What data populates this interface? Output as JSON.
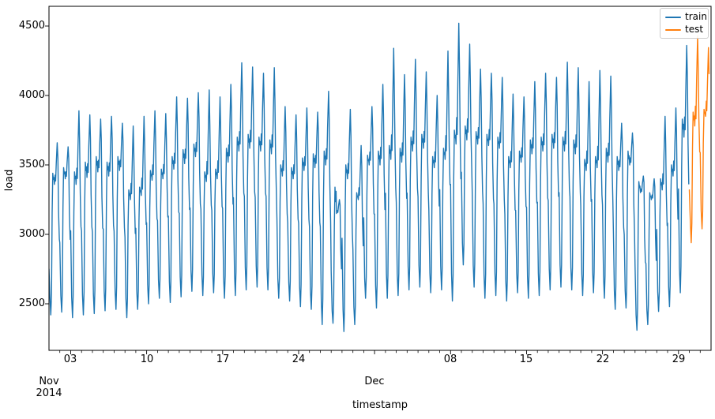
{
  "figure": {
    "background": "#ffffff",
    "description": "Line plot of hourly energy load, train and test split, Nov-Dec 2014"
  },
  "chart_data": {
    "type": "line",
    "title": "",
    "xlabel": "timestamp",
    "ylabel": "load",
    "ylim": [
      2165,
      4642
    ],
    "x_span_days": 61,
    "x_start_label": "Nov 01 2014",
    "grid": false,
    "background": "#ffffff",
    "axis_color": "#000000",
    "text_color": "#000000",
    "legend": {
      "position": "upper right"
    },
    "y_ticks": [
      {
        "value": 2500,
        "label": "2500"
      },
      {
        "value": 3000,
        "label": "3000"
      },
      {
        "value": 3500,
        "label": "3500"
      },
      {
        "value": 4000,
        "label": "4000"
      },
      {
        "value": 4500,
        "label": "4500"
      }
    ],
    "x_ticks": [
      {
        "day": 2,
        "label": "03"
      },
      {
        "day": 9,
        "label": "10"
      },
      {
        "day": 16,
        "label": "17"
      },
      {
        "day": 23,
        "label": "24"
      },
      {
        "day": 30,
        "label": ""
      },
      {
        "day": 37,
        "label": "08"
      },
      {
        "day": 44,
        "label": "15"
      },
      {
        "day": 51,
        "label": "22"
      },
      {
        "day": 58,
        "label": "29"
      }
    ],
    "x_minor_tick_interval_days": 1,
    "x_offset_labels": [
      {
        "line1": "Nov",
        "line2": "2014",
        "day": 0
      },
      {
        "line1": "Dec",
        "line2": "",
        "day": 30
      }
    ],
    "series": [
      {
        "name": "train",
        "color": "#1f77b4",
        "start_day": 0,
        "days": [
          {
            "d": "Nov 01",
            "open": 2750,
            "v": [
              2420,
              3440,
              3360,
              3660
            ]
          },
          {
            "d": "Nov 02",
            "v": [
              2440,
              3480,
              3400,
              3630
            ]
          },
          {
            "d": "Nov 03",
            "v": [
              2400,
              3450,
              3360,
              3890
            ]
          },
          {
            "d": "Nov 04",
            "v": [
              2420,
              3520,
              3410,
              3860
            ]
          },
          {
            "d": "Nov 05",
            "v": [
              2430,
              3560,
              3450,
              3830
            ]
          },
          {
            "d": "Nov 06",
            "v": [
              2450,
              3520,
              3420,
              3850
            ]
          },
          {
            "d": "Nov 07",
            "v": [
              2460,
              3560,
              3460,
              3800
            ]
          },
          {
            "d": "Nov 08",
            "v": [
              2400,
              3320,
              3250,
              3780
            ]
          },
          {
            "d": "Nov 09",
            "v": [
              2460,
              3340,
              3280,
              3850
            ]
          },
          {
            "d": "Nov 10",
            "v": [
              2500,
              3460,
              3390,
              3890
            ]
          },
          {
            "d": "Nov 11",
            "v": [
              2540,
              3470,
              3400,
              3870
            ]
          },
          {
            "d": "Nov 12",
            "v": [
              2510,
              3560,
              3470,
              3990
            ]
          },
          {
            "d": "Nov 13",
            "v": [
              2550,
              3610,
              3510,
              3980
            ]
          },
          {
            "d": "Nov 14",
            "v": [
              2590,
              3650,
              3560,
              4020
            ]
          },
          {
            "d": "Nov 15",
            "v": [
              2560,
              3450,
              3380,
              4040
            ]
          },
          {
            "d": "Nov 16",
            "v": [
              2580,
              3470,
              3400,
              3990
            ]
          },
          {
            "d": "Nov 17",
            "v": [
              2540,
              3620,
              3520,
              4080
            ]
          },
          {
            "d": "Nov 18",
            "v": [
              2560,
              3700,
              3600,
              4235
            ]
          },
          {
            "d": "Nov 19",
            "v": [
              2600,
              3720,
              3620,
              4205
            ]
          },
          {
            "d": "Nov 20",
            "v": [
              2620,
              3700,
              3600,
              4160
            ]
          },
          {
            "d": "Nov 21",
            "v": [
              2600,
              3680,
              3580,
              4200
            ]
          },
          {
            "d": "Nov 22",
            "v": [
              2540,
              3500,
              3420,
              3920
            ]
          },
          {
            "d": "Nov 23",
            "v": [
              2520,
              3480,
              3400,
              3860
            ]
          },
          {
            "d": "Nov 24",
            "v": [
              2480,
              3550,
              3460,
              3910
            ]
          },
          {
            "d": "Nov 25",
            "v": [
              2460,
              3580,
              3480,
              3880
            ]
          },
          {
            "d": "Nov 26",
            "v": [
              2350,
              3600,
              3500,
              4030
            ]
          },
          {
            "d": "Nov 27",
            "v": [
              2360,
              3340,
              3150,
              3250
            ]
          },
          {
            "d": "Nov 28",
            "v": [
              2300,
              3500,
              3400,
              3900
            ]
          },
          {
            "d": "Nov 29",
            "v": [
              2350,
              3300,
              3250,
              3640
            ]
          },
          {
            "d": "Nov 30",
            "v": [
              2540,
              3570,
              3500,
              3920
            ]
          },
          {
            "d": "Dec 01",
            "v": [
              2470,
              3600,
              3500,
              4080
            ]
          },
          {
            "d": "Dec 02",
            "v": [
              2540,
              3640,
              3540,
              4340
            ]
          },
          {
            "d": "Dec 03",
            "v": [
              2560,
              3620,
              3520,
              4150
            ]
          },
          {
            "d": "Dec 04",
            "v": [
              2600,
              3700,
              3600,
              4260
            ]
          },
          {
            "d": "Dec 05",
            "v": [
              2620,
              3720,
              3620,
              4170
            ]
          },
          {
            "d": "Dec 06",
            "v": [
              2580,
              3560,
              3480,
              4000
            ]
          },
          {
            "d": "Dec 07",
            "v": [
              2600,
              3620,
              3540,
              4320
            ]
          },
          {
            "d": "Dec 08",
            "v": [
              2520,
              3750,
              3650,
              4520
            ]
          },
          {
            "d": "Dec 09",
            "v": [
              2780,
              3780,
              3680,
              4370
            ]
          },
          {
            "d": "Dec 10",
            "v": [
              2620,
              3740,
              3650,
              4190
            ]
          },
          {
            "d": "Dec 11",
            "v": [
              2540,
              3720,
              3640,
              4160
            ]
          },
          {
            "d": "Dec 12",
            "v": [
              2560,
              3700,
              3620,
              4130
            ]
          },
          {
            "d": "Dec 13",
            "v": [
              2520,
              3560,
              3480,
              4010
            ]
          },
          {
            "d": "Dec 14",
            "v": [
              2580,
              3600,
              3520,
              3990
            ]
          },
          {
            "d": "Dec 15",
            "v": [
              2540,
              3680,
              3580,
              4100
            ]
          },
          {
            "d": "Dec 16",
            "v": [
              2560,
              3700,
              3600,
              4160
            ]
          },
          {
            "d": "Dec 17",
            "v": [
              2600,
              3720,
              3620,
              4130
            ]
          },
          {
            "d": "Dec 18",
            "v": [
              2620,
              3700,
              3600,
              4240
            ]
          },
          {
            "d": "Dec 19",
            "v": [
              2600,
              3680,
              3580,
              4200
            ]
          },
          {
            "d": "Dec 20",
            "v": [
              2560,
              3540,
              3460,
              4100
            ]
          },
          {
            "d": "Dec 21",
            "v": [
              2580,
              3560,
              3480,
              4180
            ]
          },
          {
            "d": "Dec 22",
            "v": [
              2540,
              3620,
              3520,
              4140
            ]
          },
          {
            "d": "Dec 23",
            "v": [
              2460,
              3560,
              3460,
              3800
            ]
          },
          {
            "d": "Dec 24",
            "v": [
              2470,
              3600,
              3500,
              3730
            ]
          },
          {
            "d": "Dec 25",
            "v": [
              2310,
              3380,
              3300,
              3420
            ]
          },
          {
            "d": "Dec 26",
            "v": [
              2350,
              3300,
              3250,
              3400
            ]
          },
          {
            "d": "Dec 27",
            "v": [
              2445,
              3400,
              3320,
              3850
            ]
          },
          {
            "d": "Dec 28",
            "v": [
              2480,
              3500,
              3420,
              3910
            ]
          },
          {
            "d": "Dec 29",
            "v": [
              2580,
              3830,
              3700,
              4360
            ]
          }
        ]
      },
      {
        "name": "test",
        "color": "#ff7f0e",
        "start_day": 59,
        "days": [
          {
            "d": "Dec 30",
            "open": 3320,
            "v": [
              2940,
              3880,
              3780,
              4430
            ]
          },
          {
            "d": "Dec 31",
            "v": [
              3040,
              3900,
              3850,
              4345
            ],
            "end": 0.84
          }
        ]
      }
    ]
  }
}
